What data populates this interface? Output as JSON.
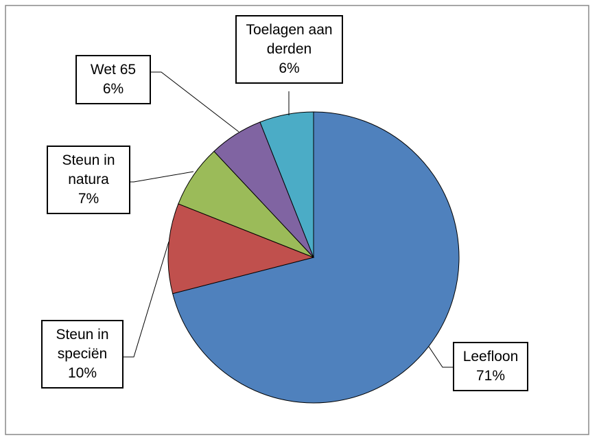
{
  "chart_data": {
    "type": "pie",
    "categories": [
      "Leefloon",
      "Steun in speciën",
      "Steun in natura",
      "Wet 65",
      "Toelagen aan derden"
    ],
    "values": [
      71,
      10,
      7,
      6,
      6
    ],
    "value_labels": [
      "71%",
      "10%",
      "7%",
      "6%",
      "6%"
    ],
    "colors": [
      "#4f81bd",
      "#c0504d",
      "#9bbb59",
      "#8064a2",
      "#4bacc6"
    ]
  }
}
